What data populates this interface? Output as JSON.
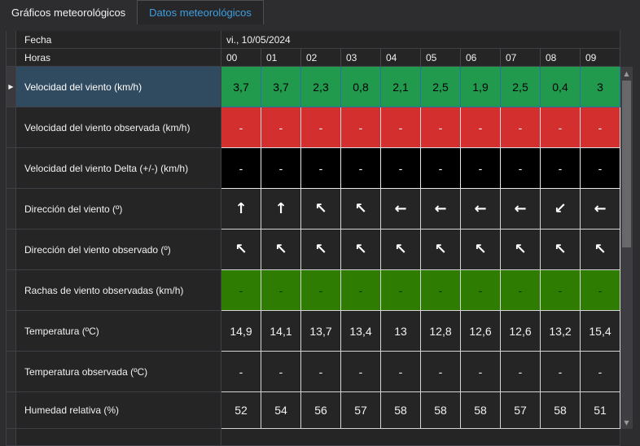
{
  "tabs": [
    {
      "label": "Gráficos meteorológicos",
      "active": false
    },
    {
      "label": "Datos meteorológicos",
      "active": true
    }
  ],
  "colors": {
    "accent_tab": "#3f9fe0",
    "green": "#229a4e",
    "red": "#d32f2f",
    "black": "#000000",
    "dark_green": "#2e7d02",
    "selected_label_bg": "#304a60",
    "selected_border": "#2771a8"
  },
  "icons": {
    "row_indicator": "▶",
    "scroll_up": "▲",
    "scroll_down": "▼"
  },
  "table": {
    "date_row": {
      "label": "Fecha",
      "value": "vi., 10/05/2024"
    },
    "hours_row": {
      "label": "Horas",
      "hours": [
        "00",
        "01",
        "02",
        "03",
        "04",
        "05",
        "06",
        "07",
        "08",
        "09"
      ]
    },
    "rows": [
      {
        "label": "Velocidad del viento (km/h)",
        "selected": true,
        "bg": "#229a4e",
        "fg": "#000000",
        "border": "#2771a8",
        "values": [
          "3,7",
          "3,7",
          "2,3",
          "0,8",
          "2,1",
          "2,5",
          "1,9",
          "2,5",
          "0,4",
          "3"
        ]
      },
      {
        "label": "Velocidad del viento observada (km/h)",
        "bg": "#d32f2f",
        "fg": "#ffffff",
        "border": "#dddddd",
        "values": [
          "-",
          "-",
          "-",
          "-",
          "-",
          "-",
          "-",
          "-",
          "-",
          "-"
        ]
      },
      {
        "label": "Velocidad del viento Delta (+/-) (km/h)",
        "bg": "#000000",
        "fg": "#ffffff",
        "border": "#e8e8e8",
        "values": [
          "-",
          "-",
          "-",
          "-",
          "-",
          "-",
          "-",
          "-",
          "-",
          "-"
        ]
      },
      {
        "label": "Dirección del viento (º)",
        "arrows": true,
        "bg": "#252526",
        "fg": "#ffffff",
        "border": "#d4d4d4",
        "values": [
          "↑",
          "↑",
          "↖",
          "↖",
          "←",
          "←",
          "←",
          "←",
          "↙",
          "←"
        ]
      },
      {
        "label": "Dirección del viento observado (º)",
        "arrows": true,
        "bg": "#252526",
        "fg": "#ffffff",
        "border": "#d4d4d4",
        "values": [
          "↖",
          "↖",
          "↖",
          "↖",
          "↖",
          "↖",
          "↖",
          "↖",
          "↖",
          "↖"
        ]
      },
      {
        "label": "Rachas de viento observadas (km/h)",
        "bg": "#2e7d02",
        "fg": "#0b3000",
        "border": "#d4d4d4",
        "values": [
          "-",
          "-",
          "-",
          "-",
          "-",
          "-",
          "-",
          "-",
          "-",
          "-"
        ]
      },
      {
        "label": "Temperatura (ºC)",
        "bg": "#252526",
        "fg": "#f1f1f1",
        "border": "#d4d4d4",
        "values": [
          "14,9",
          "14,1",
          "13,7",
          "13,4",
          "13",
          "12,8",
          "12,6",
          "12,6",
          "13,2",
          "15,4"
        ]
      },
      {
        "label": "Temperatura observada (ºC)",
        "bg": "#252526",
        "fg": "#f1f1f1",
        "border": "#d4d4d4",
        "values": [
          "-",
          "-",
          "-",
          "-",
          "-",
          "-",
          "-",
          "-",
          "-",
          "-"
        ]
      },
      {
        "label": "Humedad relativa (%)",
        "bg": "#252526",
        "fg": "#f1f1f1",
        "border": "#d4d4d4",
        "values": [
          "52",
          "54",
          "56",
          "57",
          "58",
          "58",
          "58",
          "57",
          "58",
          "51"
        ]
      }
    ]
  }
}
